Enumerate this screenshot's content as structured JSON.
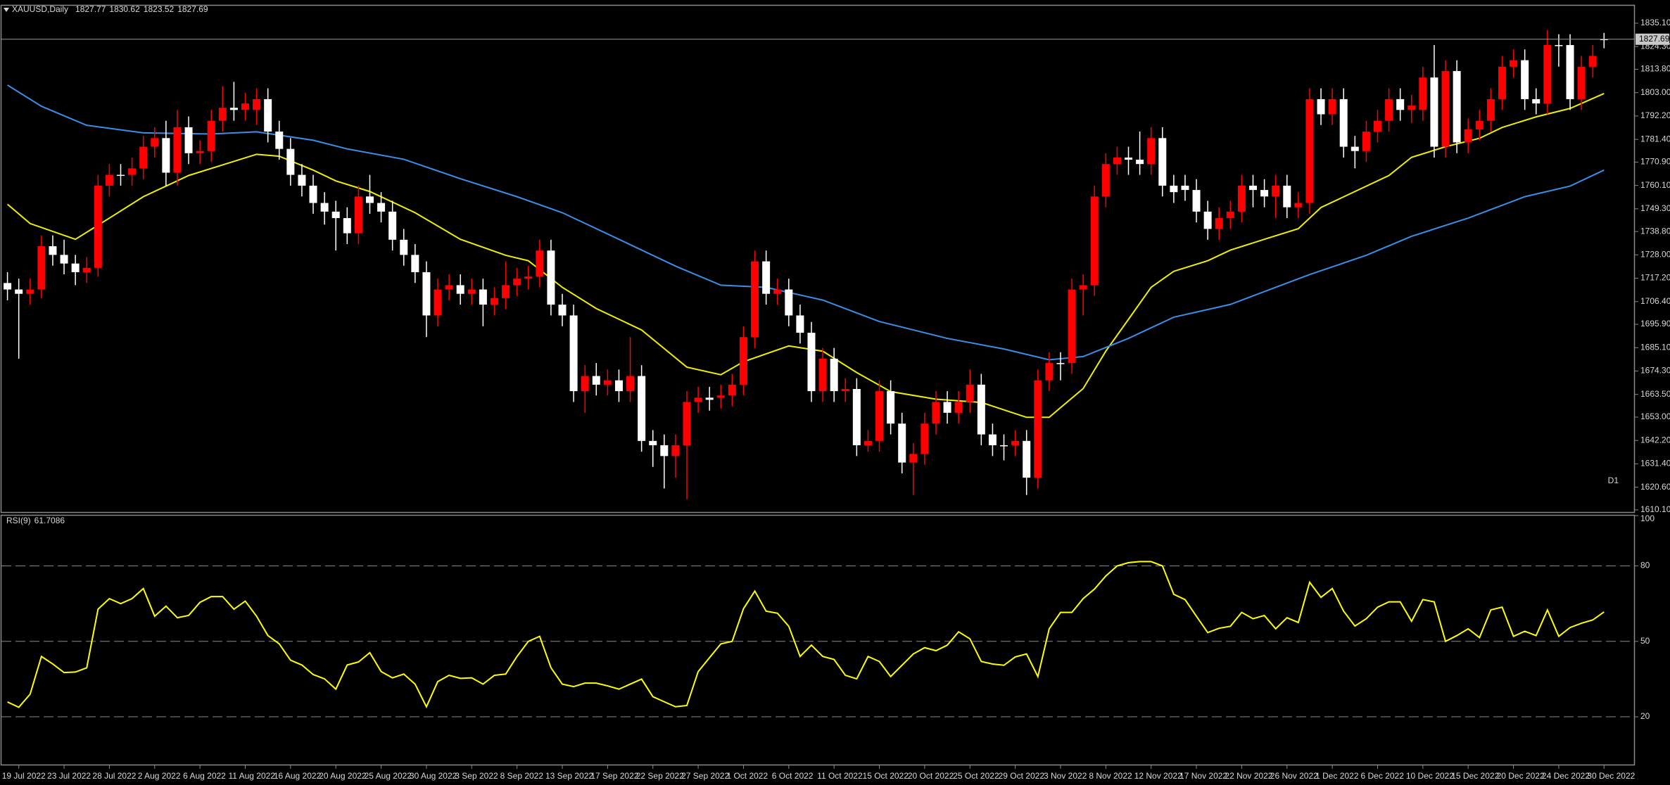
{
  "chart_data": [
    {
      "type": "candlestick",
      "title": "XAUUSD,Daily",
      "timeframe": "D1",
      "up_color": "#ff0000",
      "down_color": "#ffffff",
      "timeframe_color": "#e00000",
      "categories": [
        null,
        "19 Jul 2022",
        null,
        null,
        null,
        "23 Jul 2022",
        null,
        null,
        null,
        "28 Jul 2022",
        null,
        null,
        null,
        "2 Aug 2022",
        null,
        null,
        null,
        "6 Aug 2022",
        null,
        null,
        null,
        "11 Aug 2022",
        null,
        null,
        null,
        "16 Aug 2022",
        null,
        null,
        null,
        "20 Aug 2022",
        null,
        null,
        null,
        "25 Aug 2022",
        null,
        null,
        null,
        "30 Aug 2022",
        null,
        null,
        null,
        "3 Sep 2022",
        null,
        null,
        null,
        "8 Sep 2022",
        null,
        null,
        null,
        "13 Sep 2022",
        null,
        null,
        null,
        "17 Sep 2022",
        null,
        null,
        null,
        "22 Sep 2022",
        null,
        null,
        null,
        "27 Sep 2022",
        null,
        null,
        null,
        "1 Oct 2022",
        null,
        null,
        null,
        "6 Oct 2022",
        null,
        null,
        null,
        "11 Oct 2022",
        null,
        null,
        null,
        "15 Oct 2022",
        null,
        null,
        null,
        "20 Oct 2022",
        null,
        null,
        null,
        "25 Oct 2022",
        null,
        null,
        null,
        "29 Oct 2022",
        null,
        null,
        null,
        "3 Nov 2022",
        null,
        null,
        null,
        "8 Nov 2022",
        null,
        null,
        null,
        "12 Nov 2022",
        null,
        null,
        null,
        "17 Nov 2022",
        null,
        null,
        null,
        "22 Nov 2022",
        null,
        null,
        null,
        "26 Nov 2022",
        null,
        null,
        null,
        "1 Dec 2022",
        null,
        null,
        null,
        "6 Dec 2022",
        null,
        null,
        null,
        "10 Dec 2022",
        null,
        null,
        null,
        "15 Dec 2022",
        null,
        null,
        null,
        "20 Dec 2022",
        null,
        null,
        null,
        "24 Dec 2022",
        null,
        null,
        null,
        "30 Dec 2022"
      ],
      "open": [
        1715,
        1712,
        1710,
        1712,
        1732,
        1728,
        1724,
        1720,
        1722,
        1760,
        1765,
        1765,
        1768,
        1778,
        1782,
        1766,
        1787,
        1775,
        1776,
        1790,
        1796,
        1795,
        1795,
        1800,
        1785,
        1777,
        1765,
        1760,
        1752,
        1748,
        1745,
        1738,
        1755,
        1752,
        1748,
        1735,
        1728,
        1720,
        1700,
        1712,
        1714,
        1710,
        1712,
        1705,
        1708,
        1714,
        1717,
        1718,
        1730,
        1705,
        1700,
        1665,
        1672,
        1668,
        1670,
        1665,
        1672,
        1642,
        1640,
        1635,
        1640,
        1660,
        1662,
        1662,
        1663,
        1668,
        1690,
        1725,
        1710,
        1712,
        1700,
        1692,
        1665,
        1680,
        1665,
        1666,
        1640,
        1642,
        1665,
        1650,
        1632,
        1636,
        1650,
        1660,
        1655,
        1660,
        1668,
        1645,
        1640,
        1640,
        1642,
        1625,
        1670,
        1678,
        1678,
        1712,
        1714,
        1755,
        1770,
        1773,
        1772,
        1770,
        1782,
        1760,
        1760,
        1758,
        1748,
        1740,
        1745,
        1748,
        1760,
        1758,
        1755,
        1760,
        1750,
        1752,
        1800,
        1793,
        1800,
        1778,
        1776,
        1785,
        1790,
        1800,
        1795,
        1795,
        1810,
        1778,
        1813,
        1780,
        1786,
        1790,
        1800,
        1815,
        1818,
        1800,
        1798,
        1825,
        1825,
        1800,
        1815,
        1827.77
      ],
      "high": [
        1720,
        1717,
        1717,
        1737,
        1737,
        1735,
        1728,
        1727,
        1765,
        1770,
        1770,
        1773,
        1783,
        1787,
        1790,
        1795,
        1792,
        1781,
        1795,
        1806,
        1808,
        1803,
        1805,
        1805,
        1790,
        1782,
        1770,
        1765,
        1757,
        1753,
        1750,
        1760,
        1765,
        1757,
        1753,
        1740,
        1733,
        1725,
        1717,
        1719,
        1719,
        1717,
        1717,
        1713,
        1725,
        1722,
        1723,
        1735,
        1735,
        1710,
        1705,
        1677,
        1678,
        1675,
        1675,
        1690,
        1677,
        1647,
        1645,
        1645,
        1665,
        1667,
        1667,
        1668,
        1673,
        1695,
        1730,
        1730,
        1717,
        1717,
        1705,
        1697,
        1685,
        1685,
        1671,
        1671,
        1647,
        1670,
        1670,
        1655,
        1641,
        1655,
        1665,
        1665,
        1665,
        1675,
        1673,
        1650,
        1645,
        1647,
        1647,
        1675,
        1683,
        1683,
        1717,
        1719,
        1760,
        1775,
        1778,
        1778,
        1785,
        1787,
        1787,
        1765,
        1765,
        1763,
        1753,
        1750,
        1753,
        1765,
        1765,
        1763,
        1765,
        1765,
        1757,
        1805,
        1805,
        1805,
        1805,
        1783,
        1790,
        1795,
        1805,
        1805,
        1802,
        1815,
        1825,
        1818,
        1818,
        1791,
        1795,
        1805,
        1820,
        1823,
        1823,
        1805,
        1832,
        1830,
        1830,
        1820,
        1825,
        1830.62
      ],
      "low": [
        1707,
        1680,
        1705,
        1708,
        1723,
        1719,
        1714,
        1715,
        1718,
        1755,
        1760,
        1760,
        1763,
        1773,
        1760,
        1760,
        1770,
        1770,
        1771,
        1785,
        1790,
        1790,
        1788,
        1780,
        1772,
        1760,
        1755,
        1747,
        1742,
        1730,
        1733,
        1733,
        1747,
        1743,
        1730,
        1723,
        1715,
        1690,
        1695,
        1707,
        1705,
        1705,
        1695,
        1700,
        1703,
        1709,
        1712,
        1713,
        1700,
        1695,
        1660,
        1655,
        1663,
        1663,
        1660,
        1660,
        1637,
        1630,
        1620,
        1625,
        1615,
        1655,
        1656,
        1657,
        1658,
        1663,
        1685,
        1705,
        1705,
        1695,
        1687,
        1660,
        1660,
        1660,
        1660,
        1635,
        1637,
        1637,
        1645,
        1627,
        1617,
        1631,
        1645,
        1650,
        1650,
        1655,
        1640,
        1635,
        1633,
        1635,
        1617,
        1620,
        1665,
        1670,
        1673,
        1700,
        1709,
        1750,
        1765,
        1765,
        1765,
        1765,
        1755,
        1752,
        1753,
        1743,
        1735,
        1735,
        1740,
        1743,
        1750,
        1750,
        1745,
        1745,
        1745,
        1747,
        1788,
        1788,
        1773,
        1768,
        1771,
        1780,
        1785,
        1790,
        1789,
        1790,
        1773,
        1773,
        1775,
        1775,
        1781,
        1785,
        1795,
        1810,
        1795,
        1793,
        1793,
        1815,
        1795,
        1795,
        1810,
        1823.52
      ],
      "close": [
        1712,
        1710,
        1712,
        1732,
        1728,
        1724,
        1720,
        1722,
        1760,
        1765,
        1765,
        1768,
        1778,
        1782,
        1766,
        1787,
        1775,
        1776,
        1790,
        1796,
        1795,
        1798,
        1800,
        1785,
        1777,
        1765,
        1760,
        1752,
        1748,
        1745,
        1738,
        1755,
        1752,
        1748,
        1735,
        1728,
        1720,
        1700,
        1712,
        1714,
        1710,
        1712,
        1705,
        1708,
        1714,
        1717,
        1718,
        1730,
        1705,
        1700,
        1665,
        1672,
        1668,
        1670,
        1665,
        1672,
        1642,
        1640,
        1635,
        1640,
        1660,
        1662,
        1661,
        1663,
        1668,
        1690,
        1725,
        1710,
        1712,
        1700,
        1692,
        1665,
        1680,
        1665,
        1666,
        1640,
        1642,
        1665,
        1650,
        1632,
        1636,
        1650,
        1660,
        1655,
        1660,
        1668,
        1645,
        1640,
        1640,
        1642,
        1625,
        1670,
        1678,
        1678,
        1712,
        1714,
        1755,
        1770,
        1773,
        1772,
        1770,
        1782,
        1760,
        1757,
        1758,
        1748,
        1740,
        1745,
        1748,
        1760,
        1758,
        1755,
        1760,
        1750,
        1752,
        1800,
        1793,
        1800,
        1778,
        1776,
        1785,
        1790,
        1800,
        1795,
        1797,
        1810,
        1778,
        1813,
        1780,
        1786,
        1790,
        1800,
        1815,
        1818,
        1800,
        1798,
        1825,
        1825,
        1800,
        1815,
        1820,
        1827.69
      ],
      "lines": [
        {
          "color": "#f0f000",
          "x": [
            0,
            2,
            6,
            9,
            12,
            16,
            19,
            22,
            24,
            27,
            29,
            32,
            36,
            40,
            44,
            46,
            49,
            52,
            56,
            60,
            63,
            65,
            69,
            72,
            75,
            78,
            82,
            86,
            90,
            92,
            93,
            95,
            97,
            99,
            101,
            103,
            106,
            108,
            111,
            114,
            116,
            119,
            122,
            124,
            127,
            130,
            132,
            135,
            138,
            141
          ],
          "values": [
            1751.4,
            1742.5,
            1735.2,
            1745.0,
            1754.9,
            1764.7,
            1769.6,
            1774.5,
            1773.6,
            1767.2,
            1762.2,
            1757.3,
            1747.5,
            1735.2,
            1727.8,
            1725.3,
            1713.0,
            1703.2,
            1693.3,
            1676.1,
            1672.6,
            1678.6,
            1685.9,
            1683.5,
            1673.6,
            1664.8,
            1661.3,
            1659.8,
            1652.9,
            1652.9,
            1657.4,
            1666.2,
            1683.5,
            1698.2,
            1713.0,
            1720.4,
            1725.3,
            1730.2,
            1735.2,
            1740.1,
            1749.9,
            1757.3,
            1764.7,
            1773.1,
            1778.0,
            1781.9,
            1786.9,
            1791.8,
            1795.7,
            1802.6
          ]
        },
        {
          "color": "#3b8fe8",
          "x": [
            0,
            3,
            7,
            12,
            18,
            22,
            27,
            30,
            35,
            40,
            45,
            49,
            54,
            59,
            63,
            67,
            72,
            77,
            83,
            88,
            92,
            95,
            99,
            103,
            108,
            112,
            115,
            120,
            124,
            129,
            134,
            138,
            141
          ],
          "values": [
            1806.5,
            1796.7,
            1787.9,
            1784.4,
            1783.9,
            1784.9,
            1781.0,
            1777.0,
            1772.2,
            1763.2,
            1754.9,
            1747.5,
            1735.2,
            1722.8,
            1714.0,
            1713.0,
            1707.1,
            1697.2,
            1689.4,
            1684.5,
            1679.5,
            1681.0,
            1689.4,
            1699.2,
            1705.1,
            1713.0,
            1718.9,
            1727.8,
            1736.6,
            1745.0,
            1754.9,
            1759.8,
            1767.2
          ]
        }
      ],
      "ylim": [
        1609.1,
        1842.9
      ],
      "yticks": [
        {
          "value": 1835.1,
          "label": "1835.10"
        },
        {
          "value": 1824.3,
          "label": "1824.30"
        },
        {
          "value": 1813.8,
          "label": "1813.80"
        },
        {
          "value": 1803,
          "label": "1803.00"
        },
        {
          "value": 1792.2,
          "label": "1792.20"
        },
        {
          "value": 1781.4,
          "label": "1781.40"
        },
        {
          "value": 1770.9,
          "label": "1770.90"
        },
        {
          "value": 1760.1,
          "label": "1760.10"
        },
        {
          "value": 1749.3,
          "label": "1749.30"
        },
        {
          "value": 1738.8,
          "label": "1738.80"
        },
        {
          "value": 1728,
          "label": "1728.00"
        },
        {
          "value": 1717.2,
          "label": "1717.20"
        },
        {
          "value": 1706.4,
          "label": "1706.40"
        },
        {
          "value": 1695.9,
          "label": "1695.90"
        },
        {
          "value": 1685.1,
          "label": "1685.10"
        },
        {
          "value": 1674.3,
          "label": "1674.30"
        },
        {
          "value": 1663.5,
          "label": "1663.50"
        },
        {
          "value": 1653,
          "label": "1653.00"
        },
        {
          "value": 1642.2,
          "label": "1642.20"
        },
        {
          "value": 1631.4,
          "label": "1631.40"
        },
        {
          "value": 1620.6,
          "label": "1620.60"
        },
        {
          "value": 1610.1,
          "label": "1610.10"
        }
      ],
      "grid": false
    },
    {
      "type": "line",
      "title": "RSI(9)",
      "color": "#ffff00",
      "values": [
        25.9,
        23.8,
        29,
        44,
        41,
        37.6,
        37.8,
        39.5,
        62.8,
        67,
        65,
        67,
        71,
        60,
        64,
        59.4,
        60.3,
        65.5,
        67.8,
        67.8,
        62.8,
        66,
        60,
        52.3,
        49,
        42.5,
        40.6,
        36.8,
        35.1,
        31,
        40.6,
        41.8,
        45.5,
        38,
        35.5,
        37,
        33,
        24,
        34,
        36.5,
        35.3,
        35.5,
        33,
        36.5,
        37,
        44,
        50,
        52,
        39.5,
        33,
        32,
        33.4,
        33.4,
        32.3,
        31,
        33,
        35,
        28,
        26,
        24,
        24.5,
        38,
        43.5,
        49,
        50,
        63,
        70,
        62,
        61.2,
        56,
        44,
        48.5,
        44,
        42.8,
        36.5,
        35.1,
        44,
        42,
        36,
        40.5,
        45,
        47.5,
        46.3,
        48.5,
        53.8,
        51,
        42,
        41,
        40.5,
        43.8,
        45,
        36,
        55,
        61.5,
        61.5,
        67,
        70.8,
        76,
        80,
        81.3,
        81.7,
        81.7,
        80,
        68.7,
        66.6,
        60,
        53.5,
        55.2,
        56,
        61.5,
        59,
        60.3,
        55,
        59.4,
        57.5,
        73.5,
        67.5,
        71,
        62,
        56.1,
        59,
        63.6,
        65.7,
        65.7,
        58,
        66.6,
        65.7,
        50,
        52.3,
        55,
        51.5,
        62.5,
        63.6,
        52,
        54,
        52.3,
        62.5,
        52,
        55.5,
        57.2,
        58.5,
        61.7086
      ],
      "ylim": [
        1,
        100
      ],
      "yticks": [
        100,
        80,
        50,
        20
      ],
      "grid": true
    }
  ]
}
